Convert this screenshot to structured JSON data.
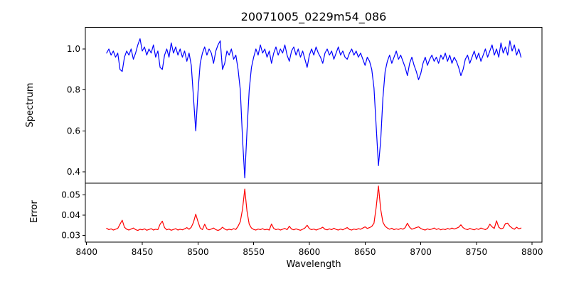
{
  "title": "20071005_0229m54_086",
  "background_color": "#ffffff",
  "chart_data": [
    {
      "type": "line",
      "panel": "spectrum",
      "series_name": "spectrum",
      "color": "#0000ff",
      "ylabel": "Spectrum",
      "ylim": [
        0.3445,
        1.1058
      ],
      "yticks": [
        0.4,
        0.6,
        0.8,
        1.0
      ],
      "ytick_labels": [
        "0.4",
        "0.6",
        "0.8",
        "1.0"
      ],
      "xlim": [
        8398.9,
        8808.8
      ],
      "grid": false,
      "x_start": 8418,
      "x_step": 2,
      "values": [
        0.98,
        1.0,
        0.97,
        0.99,
        0.96,
        0.98,
        0.9,
        0.89,
        0.96,
        0.99,
        0.97,
        1.0,
        0.95,
        0.98,
        1.02,
        1.05,
        0.99,
        1.01,
        0.97,
        1.0,
        0.98,
        1.02,
        0.96,
        0.99,
        0.91,
        0.9,
        0.97,
        1.0,
        0.96,
        1.03,
        0.98,
        1.01,
        0.97,
        1.0,
        0.96,
        0.99,
        0.94,
        0.98,
        0.92,
        0.76,
        0.6,
        0.79,
        0.93,
        0.98,
        1.01,
        0.97,
        1.0,
        0.98,
        0.93,
        0.99,
        1.02,
        1.04,
        0.9,
        0.93,
        0.99,
        0.97,
        1.0,
        0.95,
        0.97,
        0.9,
        0.8,
        0.56,
        0.37,
        0.6,
        0.8,
        0.91,
        0.96,
        1.0,
        0.97,
        1.02,
        0.98,
        1.0,
        0.96,
        0.99,
        0.93,
        0.98,
        1.01,
        0.97,
        1.0,
        0.98,
        1.02,
        0.97,
        0.94,
        0.99,
        1.01,
        0.97,
        1.0,
        0.96,
        0.99,
        0.95,
        0.91,
        0.97,
        1.0,
        0.97,
        1.01,
        0.98,
        0.96,
        0.93,
        0.98,
        1.0,
        0.97,
        0.99,
        0.95,
        0.98,
        1.01,
        0.97,
        0.99,
        0.96,
        0.95,
        0.98,
        1.0,
        0.97,
        0.99,
        0.96,
        0.98,
        0.95,
        0.92,
        0.96,
        0.94,
        0.9,
        0.81,
        0.62,
        0.43,
        0.55,
        0.76,
        0.89,
        0.94,
        0.97,
        0.93,
        0.96,
        0.99,
        0.95,
        0.97,
        0.94,
        0.91,
        0.87,
        0.93,
        0.96,
        0.92,
        0.89,
        0.85,
        0.88,
        0.93,
        0.96,
        0.92,
        0.95,
        0.97,
        0.94,
        0.96,
        0.93,
        0.97,
        0.95,
        0.98,
        0.94,
        0.97,
        0.93,
        0.96,
        0.94,
        0.91,
        0.87,
        0.9,
        0.95,
        0.97,
        0.93,
        0.96,
        0.99,
        0.95,
        0.98,
        0.94,
        0.97,
        1.0,
        0.96,
        0.99,
        1.02,
        0.97,
        1.0,
        0.96,
        1.03,
        0.98,
        1.01,
        0.97,
        1.04,
        0.99,
        1.02,
        0.97,
        1.0,
        0.96
      ],
      "absorption_line_centers": [
        8498,
        8542,
        8662
      ]
    },
    {
      "type": "line",
      "panel": "error",
      "series_name": "error",
      "color": "#ff0000",
      "ylabel": "Error",
      "xlabel": "Wavelength",
      "ylim": [
        0.0266,
        0.0559
      ],
      "yticks": [
        0.03,
        0.04,
        0.05
      ],
      "ytick_labels": [
        "0.03",
        "0.04",
        "0.05"
      ],
      "xticks": [
        8400,
        8450,
        8500,
        8550,
        8600,
        8650,
        8700,
        8750,
        8800
      ],
      "xtick_labels": [
        "8400",
        "8450",
        "8500",
        "8550",
        "8600",
        "8650",
        "8700",
        "8750",
        "8800"
      ],
      "xlim": [
        8398.9,
        8808.8
      ],
      "grid": false,
      "x_start": 8418,
      "x_step": 2,
      "values": [
        0.0335,
        0.0328,
        0.0332,
        0.0326,
        0.033,
        0.0334,
        0.0355,
        0.0375,
        0.034,
        0.033,
        0.0326,
        0.0331,
        0.0336,
        0.0328,
        0.0324,
        0.033,
        0.0327,
        0.0332,
        0.0325,
        0.0329,
        0.0333,
        0.0326,
        0.033,
        0.0328,
        0.0355,
        0.037,
        0.0338,
        0.0327,
        0.0331,
        0.0325,
        0.0329,
        0.0333,
        0.0326,
        0.033,
        0.0327,
        0.0332,
        0.0338,
        0.033,
        0.034,
        0.0365,
        0.0405,
        0.0368,
        0.0336,
        0.0328,
        0.0355,
        0.0332,
        0.0327,
        0.0331,
        0.0336,
        0.0328,
        0.0324,
        0.0329,
        0.034,
        0.0331,
        0.0326,
        0.033,
        0.0327,
        0.0333,
        0.0329,
        0.0345,
        0.0368,
        0.043,
        0.053,
        0.042,
        0.0355,
        0.0336,
        0.0329,
        0.0326,
        0.0331,
        0.0328,
        0.0333,
        0.0327,
        0.033,
        0.0326,
        0.0356,
        0.0334,
        0.0328,
        0.0331,
        0.0326,
        0.033,
        0.0334,
        0.0328,
        0.0345,
        0.0331,
        0.0327,
        0.0332,
        0.0328,
        0.0325,
        0.033,
        0.0336,
        0.035,
        0.0333,
        0.0328,
        0.0331,
        0.0326,
        0.033,
        0.0334,
        0.034,
        0.033,
        0.0327,
        0.0332,
        0.0328,
        0.0335,
        0.0329,
        0.0326,
        0.0331,
        0.0327,
        0.0333,
        0.0338,
        0.0329,
        0.0326,
        0.0331,
        0.0328,
        0.0333,
        0.033,
        0.0336,
        0.0342,
        0.0334,
        0.0338,
        0.0344,
        0.036,
        0.044,
        0.0545,
        0.043,
        0.0365,
        0.0345,
        0.0336,
        0.033,
        0.0335,
        0.0328,
        0.0332,
        0.0329,
        0.0334,
        0.033,
        0.0338,
        0.036,
        0.034,
        0.033,
        0.0334,
        0.0338,
        0.0342,
        0.0334,
        0.0329,
        0.0326,
        0.0332,
        0.0328,
        0.0331,
        0.0336,
        0.0329,
        0.0333,
        0.0327,
        0.0331,
        0.0328,
        0.0334,
        0.033,
        0.0336,
        0.0331,
        0.0335,
        0.034,
        0.0352,
        0.0338,
        0.0331,
        0.0328,
        0.0334,
        0.033,
        0.0327,
        0.0333,
        0.0329,
        0.0336,
        0.0332,
        0.0328,
        0.0335,
        0.0355,
        0.0342,
        0.0334,
        0.0372,
        0.034,
        0.0332,
        0.0336,
        0.0358,
        0.036,
        0.0345,
        0.0336,
        0.033,
        0.034,
        0.0332,
        0.0336
      ]
    }
  ]
}
